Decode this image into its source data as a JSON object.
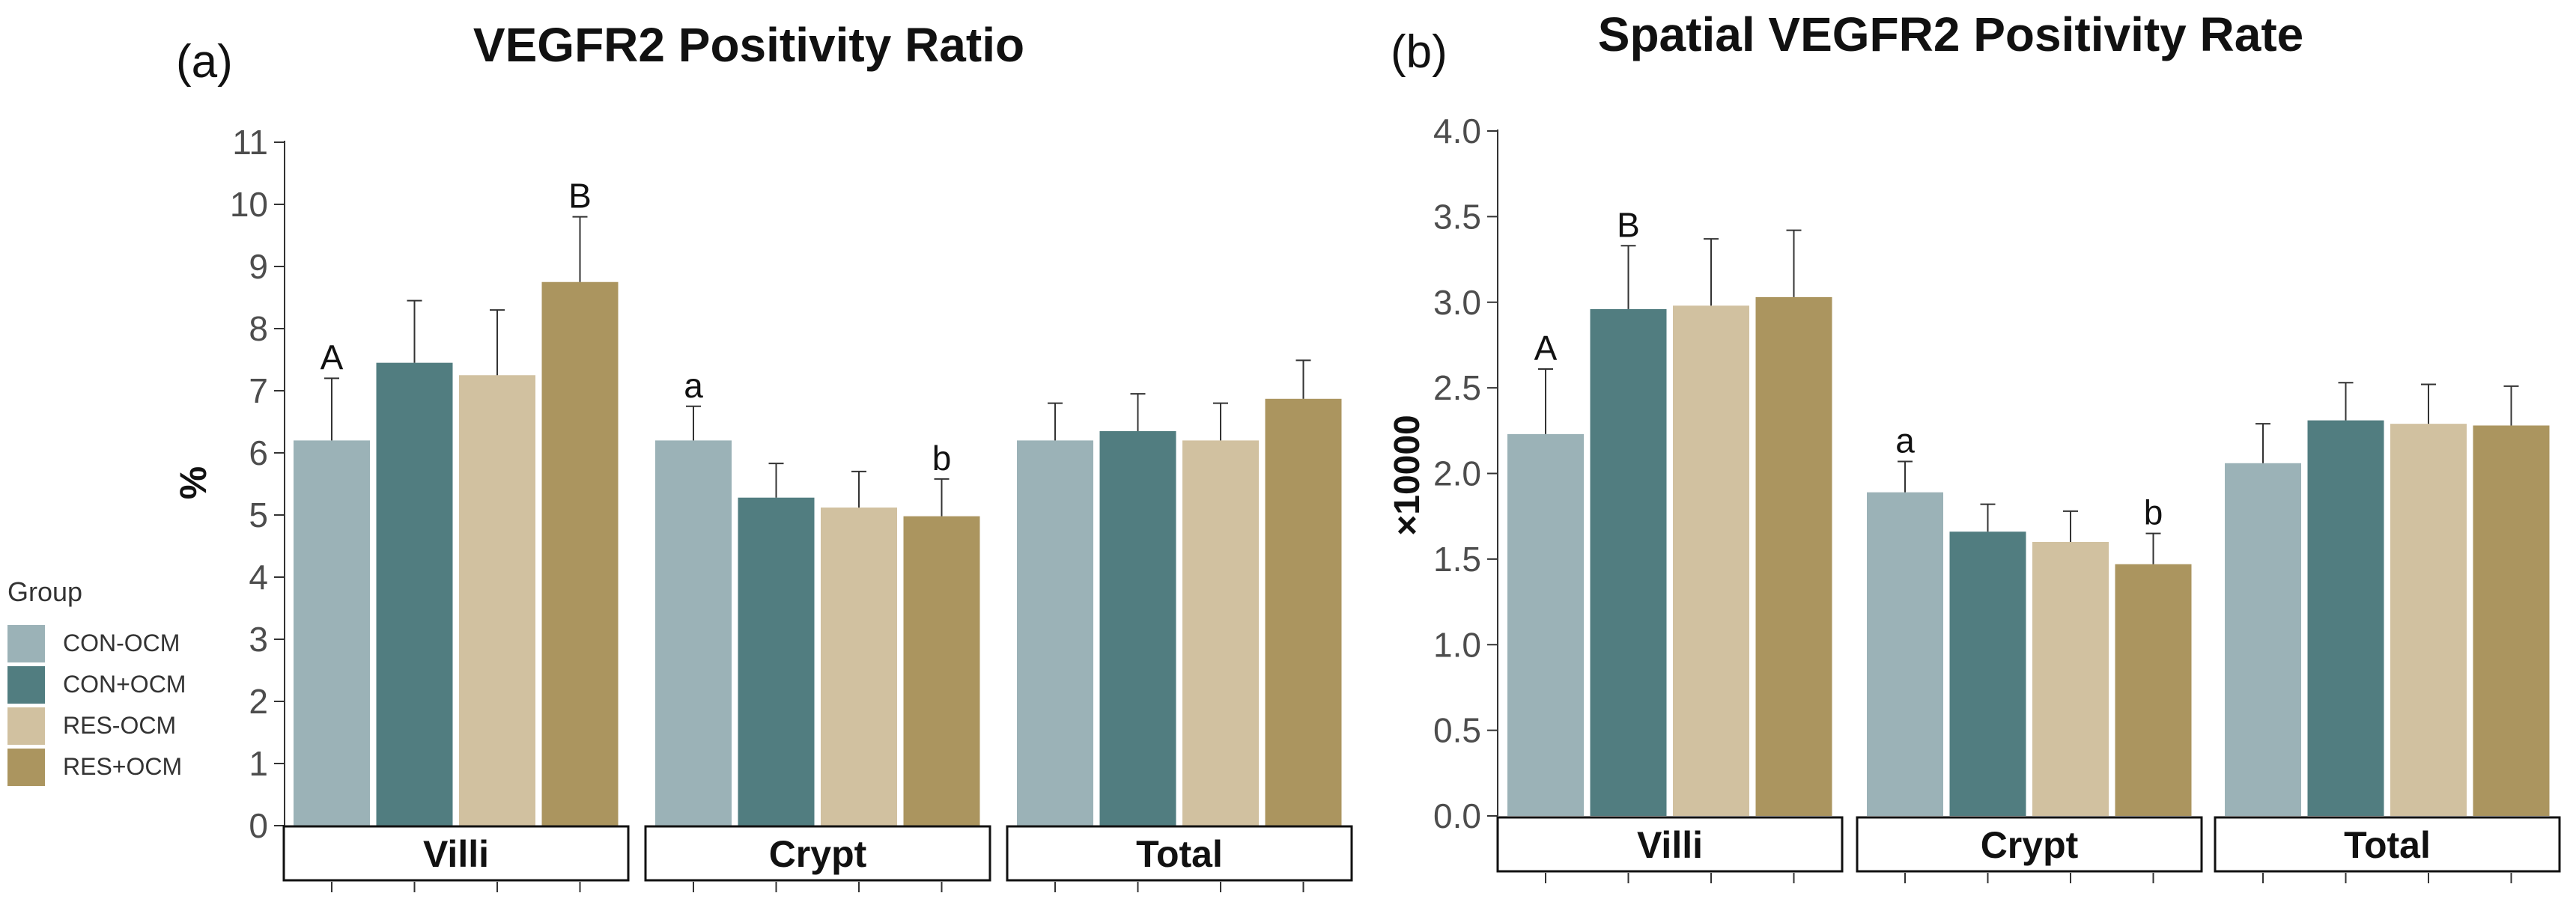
{
  "legend": {
    "title": "Group",
    "items": [
      {
        "label": "CON-OCM",
        "color": "#9bb2b7"
      },
      {
        "label": "CON+OCM",
        "color": "#517d80"
      },
      {
        "label": "RES-OCM",
        "color": "#d1c1a0"
      },
      {
        "label": "RES+OCM",
        "color": "#ab955f"
      }
    ]
  },
  "chart_data": [
    {
      "type": "bar",
      "panel_label": "(a)",
      "title": "VEGFR2 Positivity Ratio",
      "ylabel": "%",
      "xlabel": "",
      "ylim": [
        0,
        11
      ],
      "yticks": [
        "0",
        "1",
        "2",
        "3",
        "4",
        "5",
        "6",
        "7",
        "8",
        "9",
        "10",
        "11"
      ],
      "facets": [
        "Villi",
        "Crypt",
        "Total"
      ],
      "series": [
        {
          "name": "CON-OCM",
          "values": [
            6.2,
            6.2,
            6.2
          ],
          "errors": [
            1.0,
            0.55,
            0.6
          ]
        },
        {
          "name": "CON+OCM",
          "values": [
            7.45,
            5.28,
            6.35
          ],
          "errors": [
            1.0,
            0.55,
            0.6
          ]
        },
        {
          "name": "RES-OCM",
          "values": [
            7.25,
            5.12,
            6.2
          ],
          "errors": [
            1.05,
            0.58,
            0.6
          ]
        },
        {
          "name": "RES+OCM",
          "values": [
            8.75,
            4.98,
            6.87
          ],
          "errors": [
            1.05,
            0.6,
            0.62
          ]
        }
      ],
      "annotations": [
        {
          "facet": "Villi",
          "series": "CON-OCM",
          "text": "A"
        },
        {
          "facet": "Villi",
          "series": "RES+OCM",
          "text": "B"
        },
        {
          "facet": "Crypt",
          "series": "CON-OCM",
          "text": "a"
        },
        {
          "facet": "Crypt",
          "series": "RES+OCM",
          "text": "b"
        }
      ]
    },
    {
      "type": "bar",
      "panel_label": "(b)",
      "title": "Spatial VEGFR2 Positivity Rate",
      "ylabel": "×10000",
      "xlabel": "",
      "ylim": [
        0,
        4.0
      ],
      "yticks": [
        "0.0",
        "0.5",
        "1.0",
        "1.5",
        "2.0",
        "2.5",
        "3.0",
        "3.5",
        "4.0"
      ],
      "facets": [
        "Villi",
        "Crypt",
        "Total"
      ],
      "series": [
        {
          "name": "CON-OCM",
          "values": [
            2.23,
            1.89,
            2.06
          ],
          "errors": [
            0.38,
            0.18,
            0.23
          ]
        },
        {
          "name": "CON+OCM",
          "values": [
            2.96,
            1.66,
            2.31
          ],
          "errors": [
            0.37,
            0.16,
            0.22
          ]
        },
        {
          "name": "RES-OCM",
          "values": [
            2.98,
            1.6,
            2.29
          ],
          "errors": [
            0.39,
            0.18,
            0.23
          ]
        },
        {
          "name": "RES+OCM",
          "values": [
            3.03,
            1.47,
            2.28
          ],
          "errors": [
            0.39,
            0.18,
            0.23
          ]
        }
      ],
      "annotations": [
        {
          "facet": "Villi",
          "series": "CON-OCM",
          "text": "A"
        },
        {
          "facet": "Villi",
          "series": "CON+OCM",
          "text": "B"
        },
        {
          "facet": "Crypt",
          "series": "CON-OCM",
          "text": "a"
        },
        {
          "facet": "Crypt",
          "series": "RES+OCM",
          "text": "b"
        }
      ]
    }
  ]
}
